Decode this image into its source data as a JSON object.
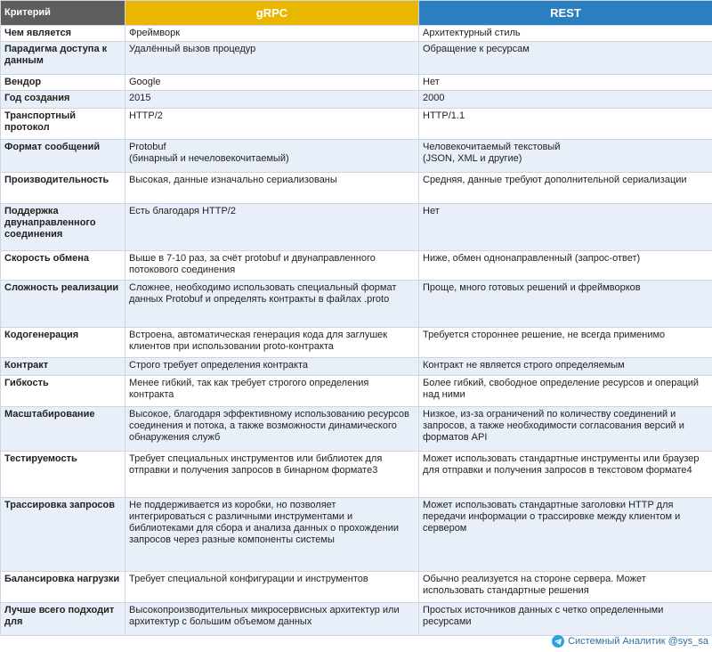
{
  "table": {
    "header": [
      "Критерий",
      "gRPC",
      "REST"
    ],
    "rows": [
      [
        "Чем является",
        "Фреймворк",
        "Архитектурный стиль"
      ],
      [
        "Парадигма доступа к данным",
        "Удалённый вызов процедур",
        "Обращение к ресурсам"
      ],
      [
        "Вендор",
        "Google",
        "Нет"
      ],
      [
        "Год создания",
        "2015",
        "2000"
      ],
      [
        "Транспортный протокол",
        "HTTP/2",
        "HTTP/1.1"
      ],
      [
        "Формат сообщений",
        "Protobuf\n(бинарный и нечеловекочитаемый)",
        "Человекочитаемый текстовый\n(JSON, XML и другие)"
      ],
      [
        "Производительность",
        "Высокая, данные изначально сериализованы",
        "Средняя, данные требуют дополнительной сериализации"
      ],
      [
        "Поддержка двунаправленного соединения",
        "Есть благодаря HTTP/2",
        "Нет"
      ],
      [
        "Скорость обмена",
        "Выше в 7-10 раз, за счёт protobuf и двунаправленного потокового соединения",
        "Ниже, обмен однонаправленный (запрос-ответ)"
      ],
      [
        "Сложность реализации",
        "Сложнее, необходимо использовать специальный формат данных Protobuf и определять контракты в файлах .proto",
        "Проще, много готовых решений и фреймворков"
      ],
      [
        "Кодогенерация",
        "Встроена, автоматическая генерация кода для заглушек клиентов при использовании proto-контракта",
        "Требуется стороннее решение, не всегда применимо"
      ],
      [
        "Контракт",
        "Строго требует определения контракта",
        "Контракт не является строго определяемым"
      ],
      [
        "Гибкость",
        "Менее гибкий, так как требует строгого определения контракта",
        "Более гибкий, свободное определение ресурсов и операций над ними"
      ],
      [
        "Масштабирование",
        "Высокое, благодаря эффективному использованию ресурсов соединения и потока, а также возможности динамического обнаружения служб",
        "Низкое, из-за ограничений по количеству соединений и запросов, а также необходимости согласования версий и форматов API"
      ],
      [
        "Тестируемость",
        "Требует специальных инструментов или библиотек для отправки и получения запросов в бинарном формате3",
        "Может использовать стандартные инструменты или браузер для отправки и получения запросов в текстовом формате4"
      ],
      [
        "Трассировка запросов",
        "Не поддерживается из коробки, но позволяет интегрироваться с различными инструментами и библиотеками для сбора и анализа данных о прохождении запросов через разные компоненты системы",
        "Может использовать стандартные заголовки HTTP для передачи информации о трассировке между клиентом и сервером"
      ],
      [
        "Балансировка нагрузки",
        "Требует специальной конфигурации и инструментов",
        "Обычно реализуется на стороне сервера. Может использовать стандартные решения"
      ],
      [
        "Лучше всего подходит для",
        "Высокопроизводительных микросервисных архитектур или архитектур с большим объемом данных",
        "Простых источников данных с четко определенными ресурсами"
      ]
    ]
  },
  "footer": "Системный Аналитик @sys_sa"
}
